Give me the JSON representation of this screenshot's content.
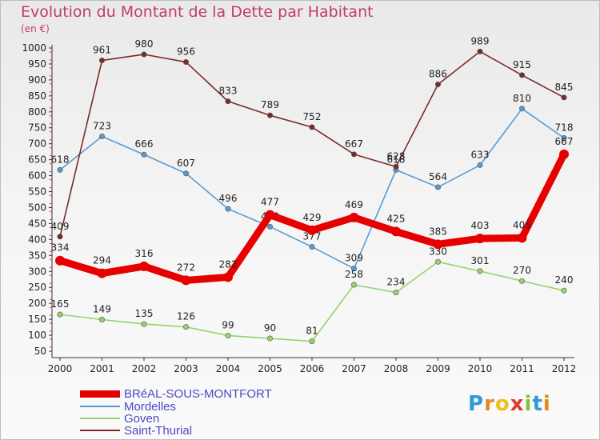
{
  "title": "Evolution du Montant de la Dette par Habitant",
  "subtitle": "(en €)",
  "logo": {
    "letters": [
      "P",
      "r",
      "o",
      "x",
      "i",
      "t",
      "i"
    ],
    "colors": [
      "#2f9ad6",
      "#e3891d",
      "#f0c020",
      "#e03a2f",
      "#7cc243",
      "#2f9ad6",
      "#e3891d"
    ]
  },
  "chart_data": {
    "type": "line",
    "title": "Evolution du Montant de la Dette par Habitant",
    "ylabel": "(en €)",
    "xlabel": "",
    "x": [
      "2000",
      "2001",
      "2002",
      "2003",
      "2004",
      "2005",
      "2006",
      "2007",
      "2008",
      "2009",
      "2010",
      "2011",
      "2012"
    ],
    "ylim": [
      50,
      1000
    ],
    "yticks": [
      50,
      100,
      150,
      200,
      250,
      300,
      350,
      400,
      450,
      500,
      550,
      600,
      650,
      700,
      750,
      800,
      850,
      900,
      950,
      1000
    ],
    "grid": false,
    "legend": "bottom-left",
    "series": [
      {
        "name": "BRéAL-SOUS-MONTFORT",
        "color": "#e60000",
        "bold": true,
        "values": [
          334,
          294,
          316,
          272,
          282,
          477,
          429,
          469,
          425,
          385,
          403,
          405,
          667
        ]
      },
      {
        "name": "Mordelles",
        "color": "#5a9ad0",
        "bold": false,
        "values": [
          618,
          723,
          666,
          607,
          496,
          440,
          377,
          309,
          618,
          564,
          633,
          810,
          718
        ]
      },
      {
        "name": "Goven",
        "color": "#97d26c",
        "bold": false,
        "values": [
          165,
          149,
          135,
          126,
          99,
          90,
          81,
          258,
          234,
          330,
          301,
          270,
          240
        ]
      },
      {
        "name": "Saint-Thurial",
        "color": "#7b2a2a",
        "bold": false,
        "values": [
          409,
          961,
          980,
          956,
          833,
          789,
          752,
          667,
          628,
          886,
          989,
          915,
          845
        ]
      }
    ]
  }
}
